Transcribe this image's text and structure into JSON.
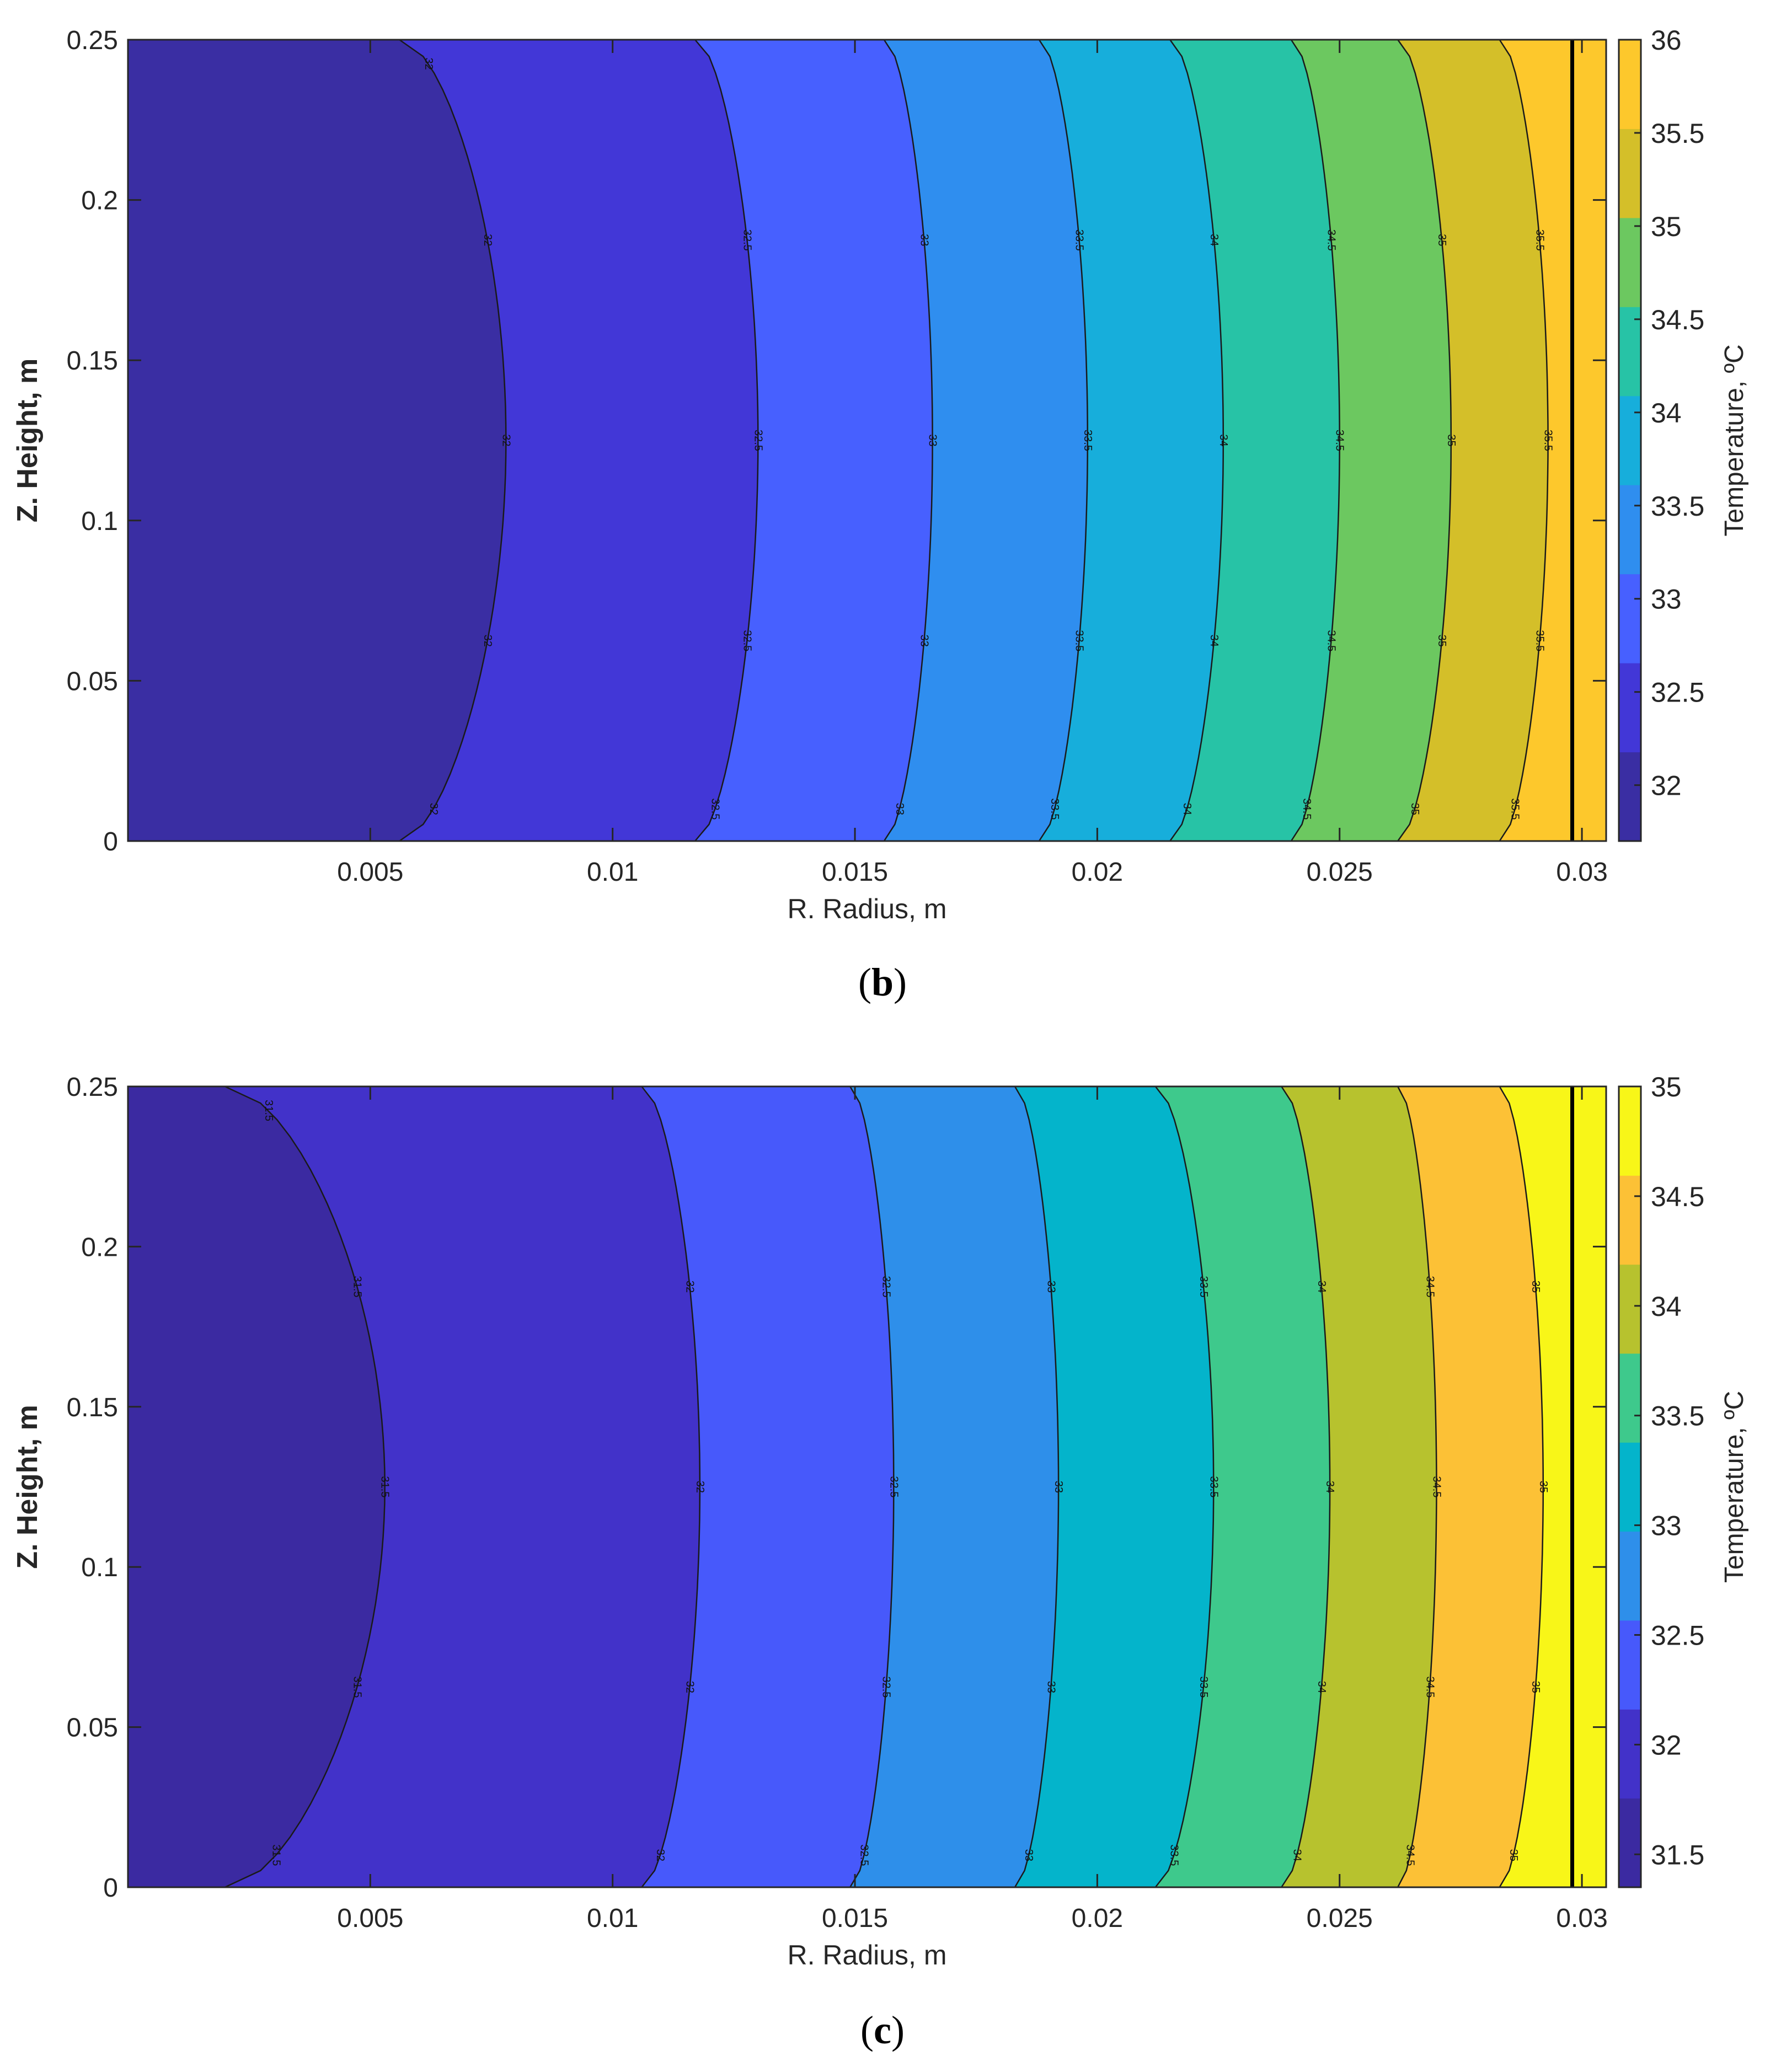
{
  "chart_data": [
    {
      "panel": "b",
      "type": "contourf",
      "xlabel": "R. Radius, m",
      "ylabel": "Z. Height, m",
      "colorbar_label": "Temperature, ºC",
      "xlim": [
        0.0,
        0.0305
      ],
      "ylim": [
        0.0,
        0.25
      ],
      "xticks": [
        0.005,
        0.01,
        0.015,
        0.02,
        0.025,
        0.03
      ],
      "xtick_labels": [
        "0.005",
        "0.01",
        "0.015",
        "0.02",
        "0.025",
        "0.03"
      ],
      "yticks": [
        0,
        0.05,
        0.1,
        0.15,
        0.2,
        0.25
      ],
      "ytick_labels": [
        "0",
        "0.05",
        "0.1",
        "0.15",
        "0.2",
        "0.25"
      ],
      "clim": [
        31.7,
        36.0
      ],
      "colorbar_ticks": [
        32,
        32.5,
        33,
        33.5,
        34,
        34.5,
        35,
        35.5,
        36
      ],
      "colorbar_tick_labels": [
        "32",
        "32.5",
        "33",
        "33.5",
        "34",
        "34.5",
        "35",
        "35.5",
        "36"
      ],
      "wall_line_x": 0.0298,
      "levels": [
        {
          "value": "32",
          "bounds": [
            5.6,
            7.8
          ],
          "labels": [
            "32",
            "32",
            "32",
            "32",
            "32"
          ]
        },
        {
          "value": "32.5",
          "bounds": [
            11.7,
            13.0
          ],
          "labels": [
            "32.5",
            "32.5",
            "32.5",
            "32.5"
          ]
        },
        {
          "value": "33",
          "bounds": [
            15.6,
            16.6
          ],
          "labels": [
            "33",
            "33",
            "33",
            "33"
          ]
        },
        {
          "value": "33.5",
          "bounds": [
            18.8,
            19.8
          ],
          "labels": [
            "33.5",
            "33.5",
            "33.5",
            "33.5"
          ]
        },
        {
          "value": "34",
          "bounds": [
            21.5,
            22.6
          ],
          "labels": [
            "34",
            "34",
            "34",
            "34"
          ]
        },
        {
          "value": "34.5",
          "bounds": [
            24.0,
            25.0
          ],
          "labels": [
            "34.5",
            "34.5",
            "34.5",
            "34.5"
          ]
        },
        {
          "value": "35",
          "bounds": [
            26.2,
            27.3
          ],
          "labels": [
            "35",
            "35",
            "35",
            "35"
          ]
        },
        {
          "value": "35.5",
          "bounds": [
            28.3,
            29.3
          ],
          "labels": [
            "35.5",
            "35.5",
            "35.5",
            "35.5"
          ]
        }
      ],
      "fill_colors": [
        "#3a2ea3",
        "#4237d7",
        "#4760ff",
        "#2f8eef",
        "#17aedb",
        "#27c3a6",
        "#6cc860",
        "#d4bf29",
        "#fdc82c"
      ]
    },
    {
      "panel": "c",
      "type": "contourf",
      "xlabel": "R. Radius, m",
      "ylabel": "Z. Height, m",
      "colorbar_label": "Temperature, ºC",
      "xlim": [
        0.0,
        0.0305
      ],
      "ylim": [
        0.0,
        0.25
      ],
      "xticks": [
        0.005,
        0.01,
        0.015,
        0.02,
        0.025,
        0.03
      ],
      "xtick_labels": [
        "0.005",
        "0.01",
        "0.015",
        "0.02",
        "0.025",
        "0.03"
      ],
      "yticks": [
        0,
        0.05,
        0.1,
        0.15,
        0.2,
        0.25
      ],
      "ytick_labels": [
        "0",
        "0.05",
        "0.1",
        "0.15",
        "0.2",
        "0.25"
      ],
      "clim": [
        31.35,
        35.0
      ],
      "colorbar_ticks": [
        31.5,
        32,
        32.5,
        33,
        33.5,
        34,
        34.5,
        35
      ],
      "colorbar_tick_labels": [
        "31.5",
        "32",
        "32.5",
        "33",
        "33.5",
        "34",
        "34.5",
        "35"
      ],
      "wall_line_x": 0.0298,
      "levels": [
        {
          "value": "31.5",
          "bounds": [
            2.0,
            5.3
          ],
          "labels": [
            "31.5",
            "31.5",
            "31.5",
            "31.5",
            "31.5"
          ]
        },
        {
          "value": "32",
          "bounds": [
            10.6,
            11.8
          ],
          "labels": [
            "32",
            "32",
            "32",
            "32"
          ]
        },
        {
          "value": "32.5",
          "bounds": [
            14.9,
            15.8
          ],
          "labels": [
            "32.5",
            "32.5",
            "32.5",
            "32.5"
          ]
        },
        {
          "value": "33",
          "bounds": [
            18.3,
            19.2
          ],
          "labels": [
            "33",
            "33",
            "33",
            "33"
          ]
        },
        {
          "value": "33.5",
          "bounds": [
            21.2,
            22.4
          ],
          "labels": [
            "33.5",
            "33.5",
            "33.5",
            "33.5"
          ]
        },
        {
          "value": "34",
          "bounds": [
            23.8,
            24.8
          ],
          "labels": [
            "34",
            "34",
            "34",
            "34"
          ]
        },
        {
          "value": "34.5",
          "bounds": [
            26.2,
            27.0
          ],
          "labels": [
            "34.5",
            "34.5",
            "34.5",
            "34.5"
          ]
        },
        {
          "value": "35",
          "bounds": [
            28.3,
            29.2
          ],
          "labels": [
            "35",
            "35",
            "35",
            "35"
          ]
        }
      ],
      "fill_colors": [
        "#3b2aa1",
        "#4232c9",
        "#4759fb",
        "#2e8fea",
        "#04b4cb",
        "#3ec98c",
        "#b7c22e",
        "#fcc136",
        "#f8f618"
      ]
    }
  ],
  "captions": {
    "b": {
      "open": "(",
      "letter": "b",
      "close": ")"
    },
    "c": {
      "open": "(",
      "letter": "c",
      "close": ")"
    }
  }
}
